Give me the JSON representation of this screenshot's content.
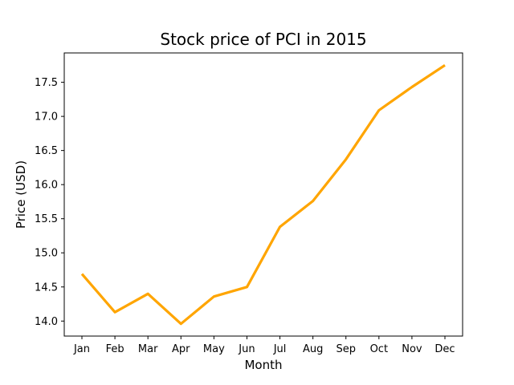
{
  "chart_data": {
    "type": "line",
    "title": "Stock price of PCI in 2015",
    "xlabel": "Month",
    "ylabel": "Price (USD)",
    "categories": [
      "Jan",
      "Feb",
      "Mar",
      "Apr",
      "May",
      "Jun",
      "Jul",
      "Aug",
      "Sep",
      "Oct",
      "Nov",
      "Dec"
    ],
    "series": [
      {
        "values": [
          14.69,
          14.13,
          14.4,
          13.96,
          14.36,
          14.5,
          15.38,
          15.76,
          16.37,
          17.09,
          17.43,
          17.75
        ],
        "color": "#ffa500"
      }
    ],
    "ylim": [
      13.78,
      17.93
    ],
    "yticks": [
      "14.0",
      "14.5",
      "15.0",
      "15.5",
      "16.0",
      "16.5",
      "17.0",
      "17.5"
    ],
    "grid": false,
    "legend": "none"
  }
}
